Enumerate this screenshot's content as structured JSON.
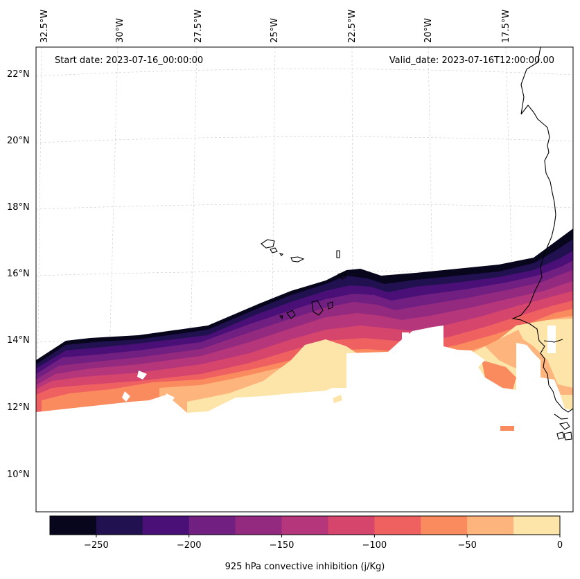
{
  "map": {
    "start_label": "Start date: 2023-07-16_00:00:00",
    "valid_label": "Valid_date: 2023-07-16T12:00:00.00",
    "lon_labels": [
      "32.5°W",
      "30°W",
      "27.5°W",
      "25°W",
      "22.5°W",
      "20°W",
      "17.5°W"
    ],
    "lat_labels": [
      "22°N",
      "20°N",
      "18°N",
      "16°N",
      "14°N",
      "12°N",
      "10°N"
    ],
    "field": "925 hPa convective inhibition",
    "field_units": "j/Kg"
  },
  "colorbar": {
    "label": "925 hPa convective inhibition (j/Kg)",
    "tick_labels": [
      "−250",
      "−200",
      "−150",
      "−100",
      "−50",
      "0"
    ],
    "levels": [
      -275,
      -250,
      -225,
      -200,
      -175,
      -150,
      -125,
      -100,
      -75,
      -50,
      -25,
      0
    ],
    "colors": [
      "#07061c",
      "#221150",
      "#4a1078",
      "#711f81",
      "#932a7f",
      "#b5367a",
      "#d6456c",
      "#ef6160",
      "#fa8b5f",
      "#feb57d",
      "#fde5a9"
    ]
  },
  "colors": {
    "land_high": "#fde5a9",
    "frame": "#000000",
    "grid": "#c8c8c8"
  }
}
